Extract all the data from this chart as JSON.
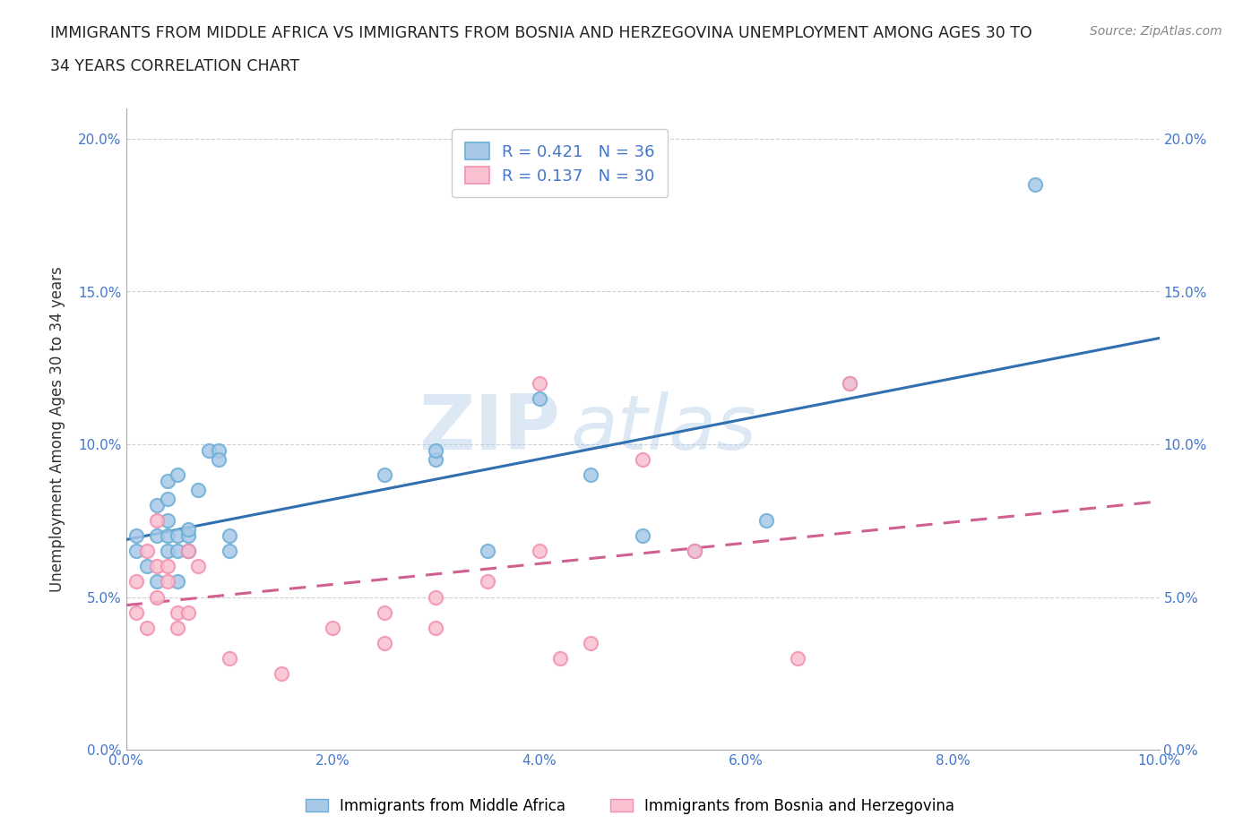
{
  "title_line1": "IMMIGRANTS FROM MIDDLE AFRICA VS IMMIGRANTS FROM BOSNIA AND HERZEGOVINA UNEMPLOYMENT AMONG AGES 30 TO",
  "title_line2": "34 YEARS CORRELATION CHART",
  "source": "Source: ZipAtlas.com",
  "ylabel": "Unemployment Among Ages 30 to 34 years",
  "xlim": [
    0.0,
    0.1
  ],
  "ylim": [
    0.0,
    0.21
  ],
  "xticks": [
    0.0,
    0.02,
    0.04,
    0.06,
    0.08,
    0.1
  ],
  "yticks": [
    0.0,
    0.05,
    0.1,
    0.15,
    0.2
  ],
  "xticklabels": [
    "0.0%",
    "2.0%",
    "4.0%",
    "6.0%",
    "8.0%",
    "10.0%"
  ],
  "yticklabels": [
    "0.0%",
    "5.0%",
    "10.0%",
    "15.0%",
    "20.0%"
  ],
  "blue_face_color": "#a8c8e8",
  "blue_edge_color": "#6baed6",
  "pink_face_color": "#f9c0cf",
  "pink_edge_color": "#f48fb1",
  "blue_line_color": "#3070b0",
  "pink_line_color": "#d06090",
  "tick_label_color": "#4477cc",
  "R_blue": 0.421,
  "N_blue": 36,
  "R_pink": 0.137,
  "N_pink": 30,
  "legend_label_blue": "Immigrants from Middle Africa",
  "legend_label_pink": "Immigrants from Bosnia and Herzegovina",
  "blue_x": [
    0.001,
    0.001,
    0.002,
    0.003,
    0.003,
    0.003,
    0.004,
    0.004,
    0.004,
    0.004,
    0.004,
    0.005,
    0.005,
    0.005,
    0.005,
    0.006,
    0.006,
    0.006,
    0.006,
    0.007,
    0.008,
    0.009,
    0.009,
    0.01,
    0.01,
    0.025,
    0.03,
    0.03,
    0.035,
    0.04,
    0.045,
    0.05,
    0.055,
    0.062,
    0.07,
    0.088
  ],
  "blue_y": [
    0.065,
    0.07,
    0.06,
    0.055,
    0.07,
    0.08,
    0.065,
    0.07,
    0.075,
    0.082,
    0.088,
    0.055,
    0.065,
    0.07,
    0.09,
    0.065,
    0.065,
    0.07,
    0.072,
    0.085,
    0.098,
    0.098,
    0.095,
    0.065,
    0.07,
    0.09,
    0.095,
    0.098,
    0.065,
    0.115,
    0.09,
    0.07,
    0.065,
    0.075,
    0.12,
    0.185
  ],
  "pink_x": [
    0.001,
    0.001,
    0.002,
    0.002,
    0.003,
    0.003,
    0.003,
    0.004,
    0.004,
    0.005,
    0.005,
    0.006,
    0.006,
    0.007,
    0.01,
    0.015,
    0.02,
    0.025,
    0.025,
    0.03,
    0.03,
    0.035,
    0.04,
    0.04,
    0.042,
    0.045,
    0.05,
    0.055,
    0.065,
    0.07
  ],
  "pink_y": [
    0.045,
    0.055,
    0.04,
    0.065,
    0.05,
    0.06,
    0.075,
    0.055,
    0.06,
    0.04,
    0.045,
    0.045,
    0.065,
    0.06,
    0.03,
    0.025,
    0.04,
    0.035,
    0.045,
    0.04,
    0.05,
    0.055,
    0.12,
    0.065,
    0.03,
    0.035,
    0.095,
    0.065,
    0.03,
    0.12
  ],
  "watermark_zip": "ZIP",
  "watermark_atlas": "atlas",
  "plot_bg": "#ffffff",
  "fig_bg": "#ffffff"
}
